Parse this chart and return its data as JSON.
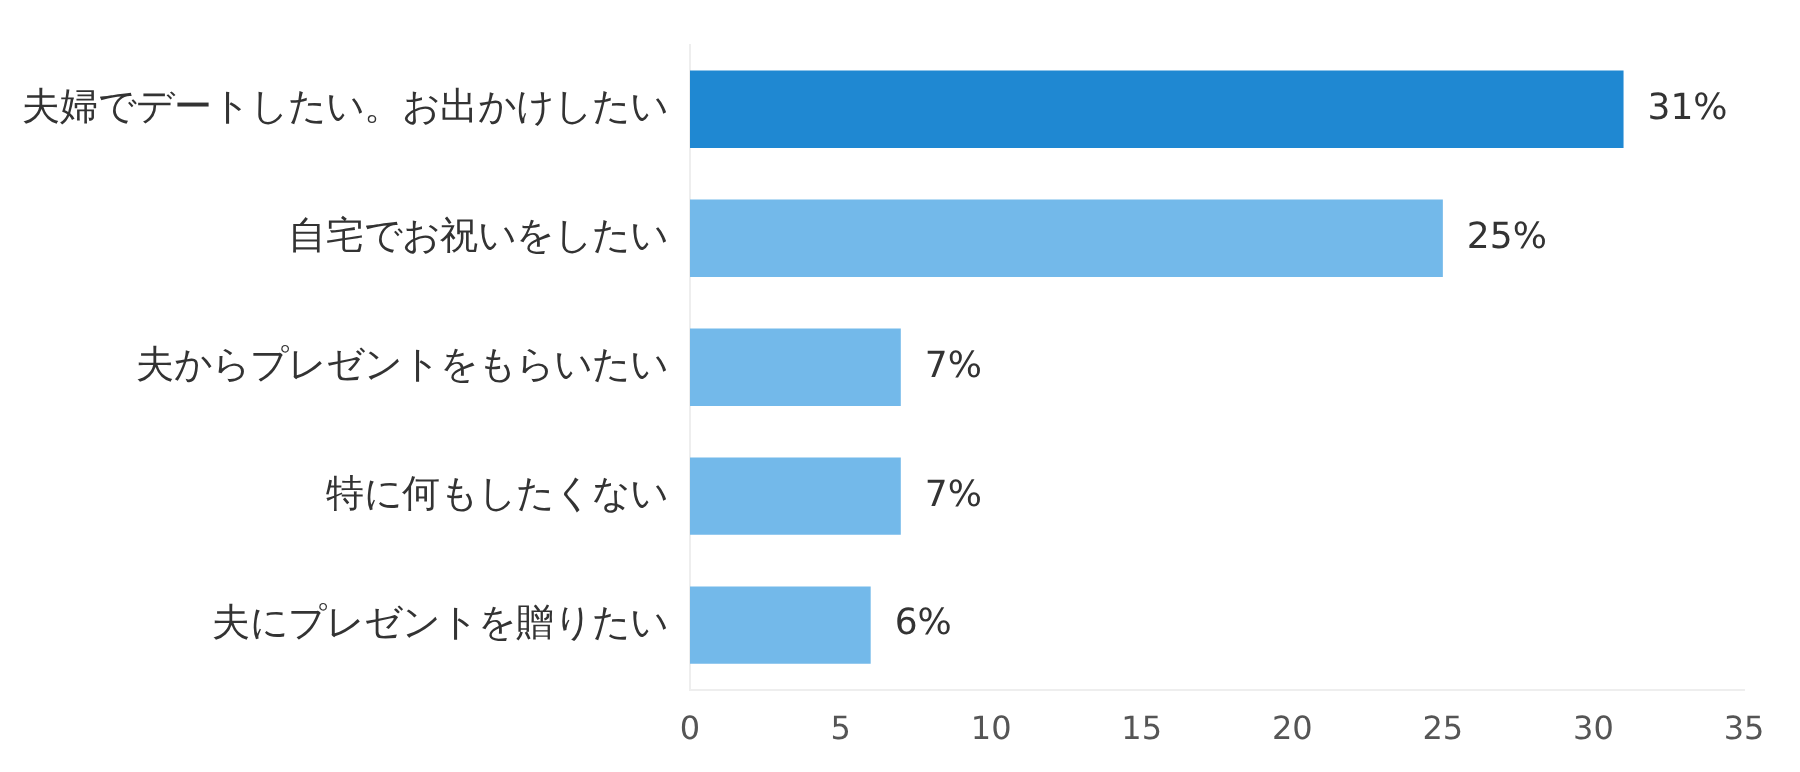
{
  "chart_data": {
    "type": "bar",
    "orientation": "horizontal",
    "categories": [
      "夫婦でデートしたい。お出かけしたい",
      "自宅でお祝いをしたい",
      "夫からプレゼントをもらいたい",
      "特に何もしたくない",
      "夫にプレゼントを贈りたい"
    ],
    "values": [
      31,
      25,
      7,
      7,
      6
    ],
    "colors": [
      "#1f88d2",
      "#73b9ea",
      "#73b9ea",
      "#73b9ea",
      "#73b9ea"
    ],
    "value_labels": [
      "31%",
      "25%",
      "7%",
      "7%",
      "6%"
    ],
    "xlim": [
      0,
      35
    ],
    "xticks": [
      0,
      5,
      10,
      15,
      20,
      25,
      30,
      35
    ],
    "grid": false,
    "legend": false
  }
}
